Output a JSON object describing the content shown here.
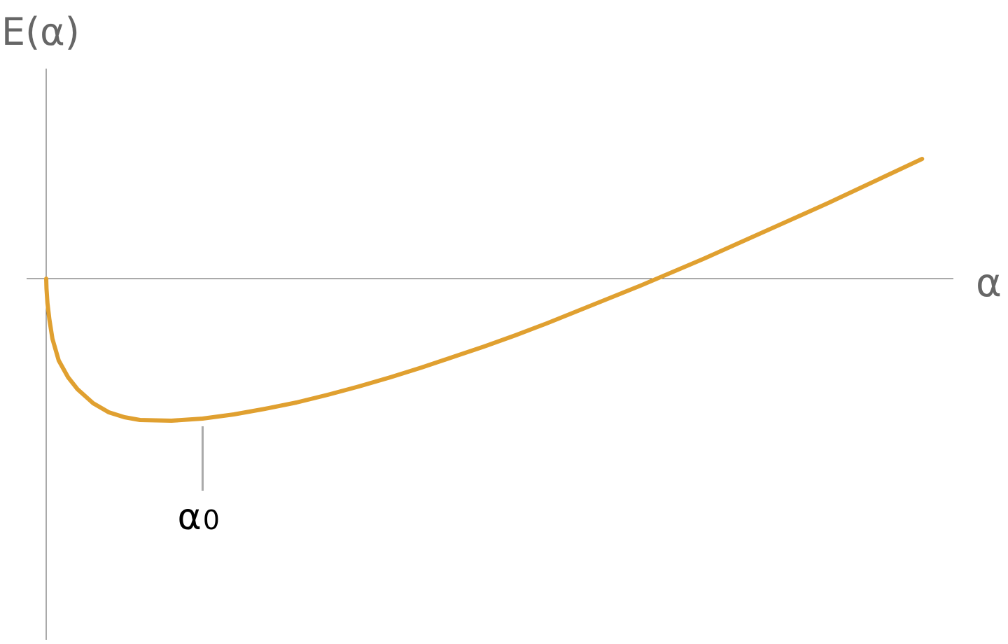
{
  "chart_data": {
    "type": "line",
    "title": "",
    "xlabel": "α",
    "ylabel": "E(α)",
    "xlim": [
      0,
      14.5
    ],
    "ylim": [
      -2.5,
      2.5
    ],
    "grid": false,
    "legend": "none",
    "series": [
      {
        "color": "#E0A030",
        "x": [
          0.005,
          0.02,
          0.05,
          0.1,
          0.2,
          0.35,
          0.5,
          0.75,
          1.0,
          1.25,
          1.5,
          2.0,
          2.5,
          3.0,
          3.5,
          4.0,
          4.5,
          5.0,
          5.5,
          6.0,
          6.5,
          7.0,
          7.5,
          8.0,
          8.5,
          9.0,
          9.5,
          10.0,
          10.5,
          11.0,
          11.5,
          12.0,
          12.5,
          13.0,
          13.5,
          14.0
        ],
        "y": [
          -0.14,
          -0.35,
          -0.58,
          -0.86,
          -1.17,
          -1.41,
          -1.58,
          -1.78,
          -1.91,
          -1.98,
          -2.02,
          -2.03,
          -2.0,
          -1.94,
          -1.86,
          -1.77,
          -1.66,
          -1.54,
          -1.41,
          -1.27,
          -1.12,
          -0.97,
          -0.81,
          -0.64,
          -0.46,
          -0.28,
          -0.1,
          0.09,
          0.28,
          0.48,
          0.68,
          0.88,
          1.08,
          1.29,
          1.5,
          1.71
        ]
      }
    ],
    "annotations": [
      {
        "text": "α",
        "sub": "0",
        "x": 2.5,
        "y": -2.03
      }
    ]
  },
  "colors": {
    "curve": "#E0A030",
    "axis": "#555555",
    "label": "#666666",
    "marker": "#AAAAAA"
  }
}
